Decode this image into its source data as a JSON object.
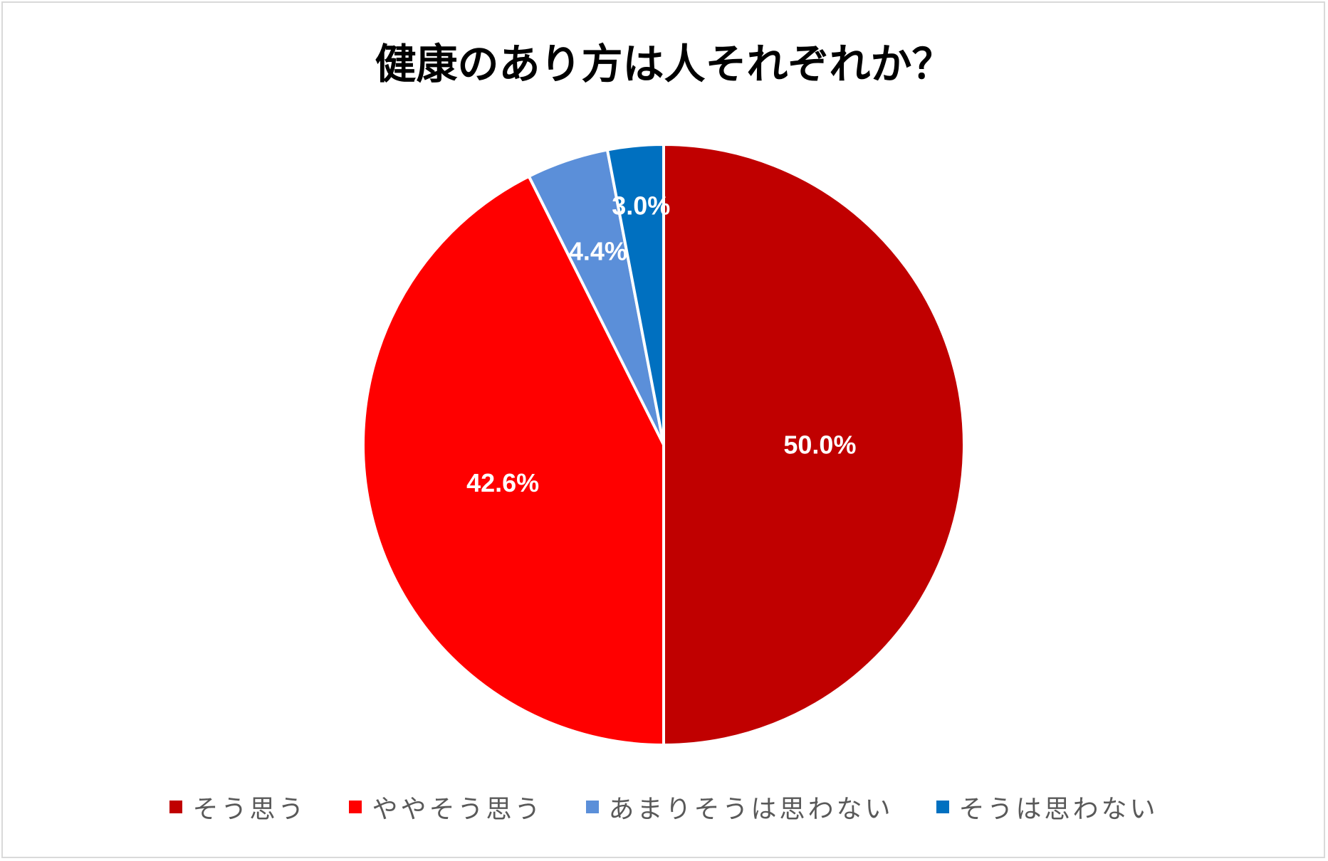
{
  "chart_data": {
    "type": "pie",
    "title": "健康のあり方は人それぞれか？",
    "categories": [
      "そう思う",
      "ややそう思う",
      "あまりそうは思わない",
      "そうは思わない"
    ],
    "values": [
      50.0,
      42.6,
      4.4,
      3.0
    ],
    "data_labels": [
      "50.0%",
      "42.6%",
      "4.4%",
      "3.0%"
    ],
    "colors": [
      "#c00000",
      "#ff0000",
      "#5b8fd9",
      "#0070c0"
    ],
    "start_angle": "12 o'clock",
    "direction": "counterclockwise",
    "legend_position": "bottom"
  }
}
